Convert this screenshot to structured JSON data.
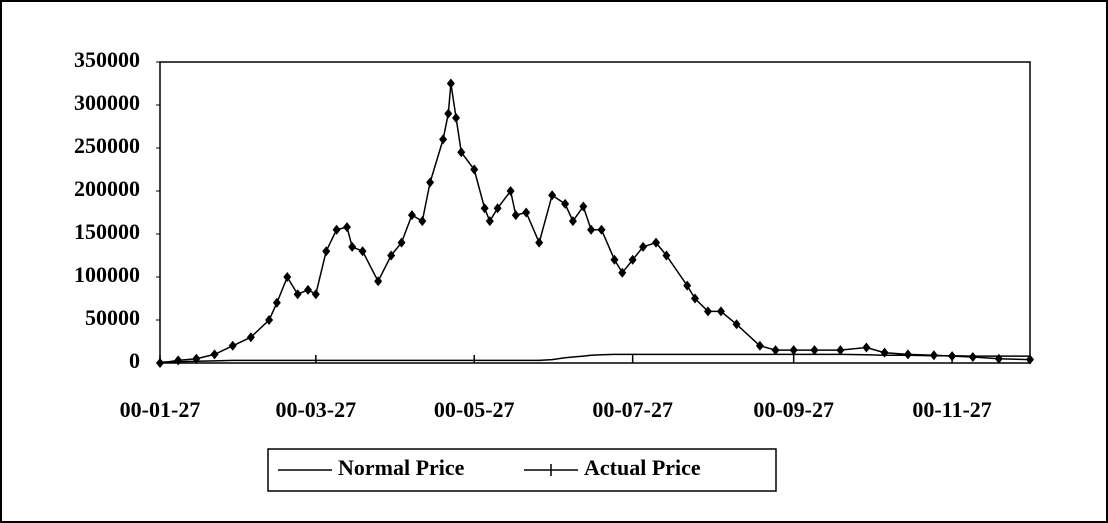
{
  "chart_data": {
    "type": "line",
    "x": [
      "00-01-27",
      "00-02-03",
      "00-02-10",
      "00-02-17",
      "00-02-24",
      "00-03-02",
      "00-03-09",
      "00-03-12",
      "00-03-16",
      "00-03-20",
      "00-03-24",
      "00-03-27",
      "00-03-31",
      "00-04-04",
      "00-04-08",
      "00-04-10",
      "00-04-14",
      "00-04-20",
      "00-04-25",
      "00-04-29",
      "00-05-03",
      "00-05-07",
      "00-05-10",
      "00-05-15",
      "00-05-17",
      "00-05-18",
      "00-05-20",
      "00-05-22",
      "00-05-27",
      "00-05-31",
      "00-06-02",
      "00-06-05",
      "00-06-10",
      "00-06-12",
      "00-06-16",
      "00-06-21",
      "00-06-26",
      "00-07-01",
      "00-07-04",
      "00-07-08",
      "00-07-11",
      "00-07-15",
      "00-07-20",
      "00-07-23",
      "00-07-27",
      "00-07-31",
      "00-08-05",
      "00-08-09",
      "00-08-17",
      "00-08-20",
      "00-08-25",
      "00-08-30",
      "00-09-05",
      "00-09-14",
      "00-09-20",
      "00-09-27",
      "00-10-05",
      "00-10-15",
      "00-10-25",
      "00-11-01",
      "00-11-10",
      "00-11-20",
      "00-11-27",
      "00-12-05",
      "00-12-15",
      "00-12-27"
    ],
    "series": [
      {
        "name": "Normal Price",
        "color": "#000000",
        "values": [
          1000,
          1500,
          2000,
          2500,
          3000,
          3000,
          3000,
          3000,
          3000,
          3000,
          3000,
          3000,
          3000,
          3000,
          3000,
          3000,
          3000,
          3000,
          3000,
          3000,
          3000,
          3000,
          3000,
          3000,
          3000,
          3000,
          3000,
          3000,
          3000,
          3000,
          3000,
          3000,
          3000,
          3000,
          3000,
          3000,
          4000,
          6000,
          7000,
          8000,
          9000,
          9500,
          10000,
          10000,
          10000,
          10000,
          10000,
          10000,
          10000,
          10000,
          10000,
          10000,
          10000,
          10000,
          10000,
          10000,
          10000,
          10000,
          9500,
          9000,
          9000,
          8500,
          8500,
          8000,
          8000,
          8000
        ]
      },
      {
        "name": "Actual Price",
        "color": "#000000",
        "values": [
          0,
          3000,
          5000,
          10000,
          20000,
          30000,
          50000,
          70000,
          100000,
          80000,
          85000,
          80000,
          130000,
          155000,
          158000,
          135000,
          130000,
          95000,
          125000,
          140000,
          172000,
          165000,
          210000,
          260000,
          290000,
          325000,
          285000,
          245000,
          225000,
          180000,
          165000,
          180000,
          200000,
          172000,
          175000,
          140000,
          195000,
          185000,
          165000,
          182000,
          155000,
          155000,
          120000,
          105000,
          120000,
          135000,
          140000,
          125000,
          90000,
          75000,
          60000,
          60000,
          45000,
          20000,
          15000,
          15000,
          15000,
          15000,
          18000,
          12000,
          10000,
          9000,
          8000,
          7000,
          5000,
          4000
        ]
      }
    ],
    "xlim": [
      "00-01-27",
      "00-12-27"
    ],
    "xticks": [
      "00-01-27",
      "00-03-27",
      "00-05-27",
      "00-07-27",
      "00-09-27",
      "00-11-27"
    ],
    "ylim": [
      0,
      350000
    ],
    "yticks": [
      0,
      50000,
      100000,
      150000,
      200000,
      250000,
      300000,
      350000
    ],
    "grid": false
  }
}
